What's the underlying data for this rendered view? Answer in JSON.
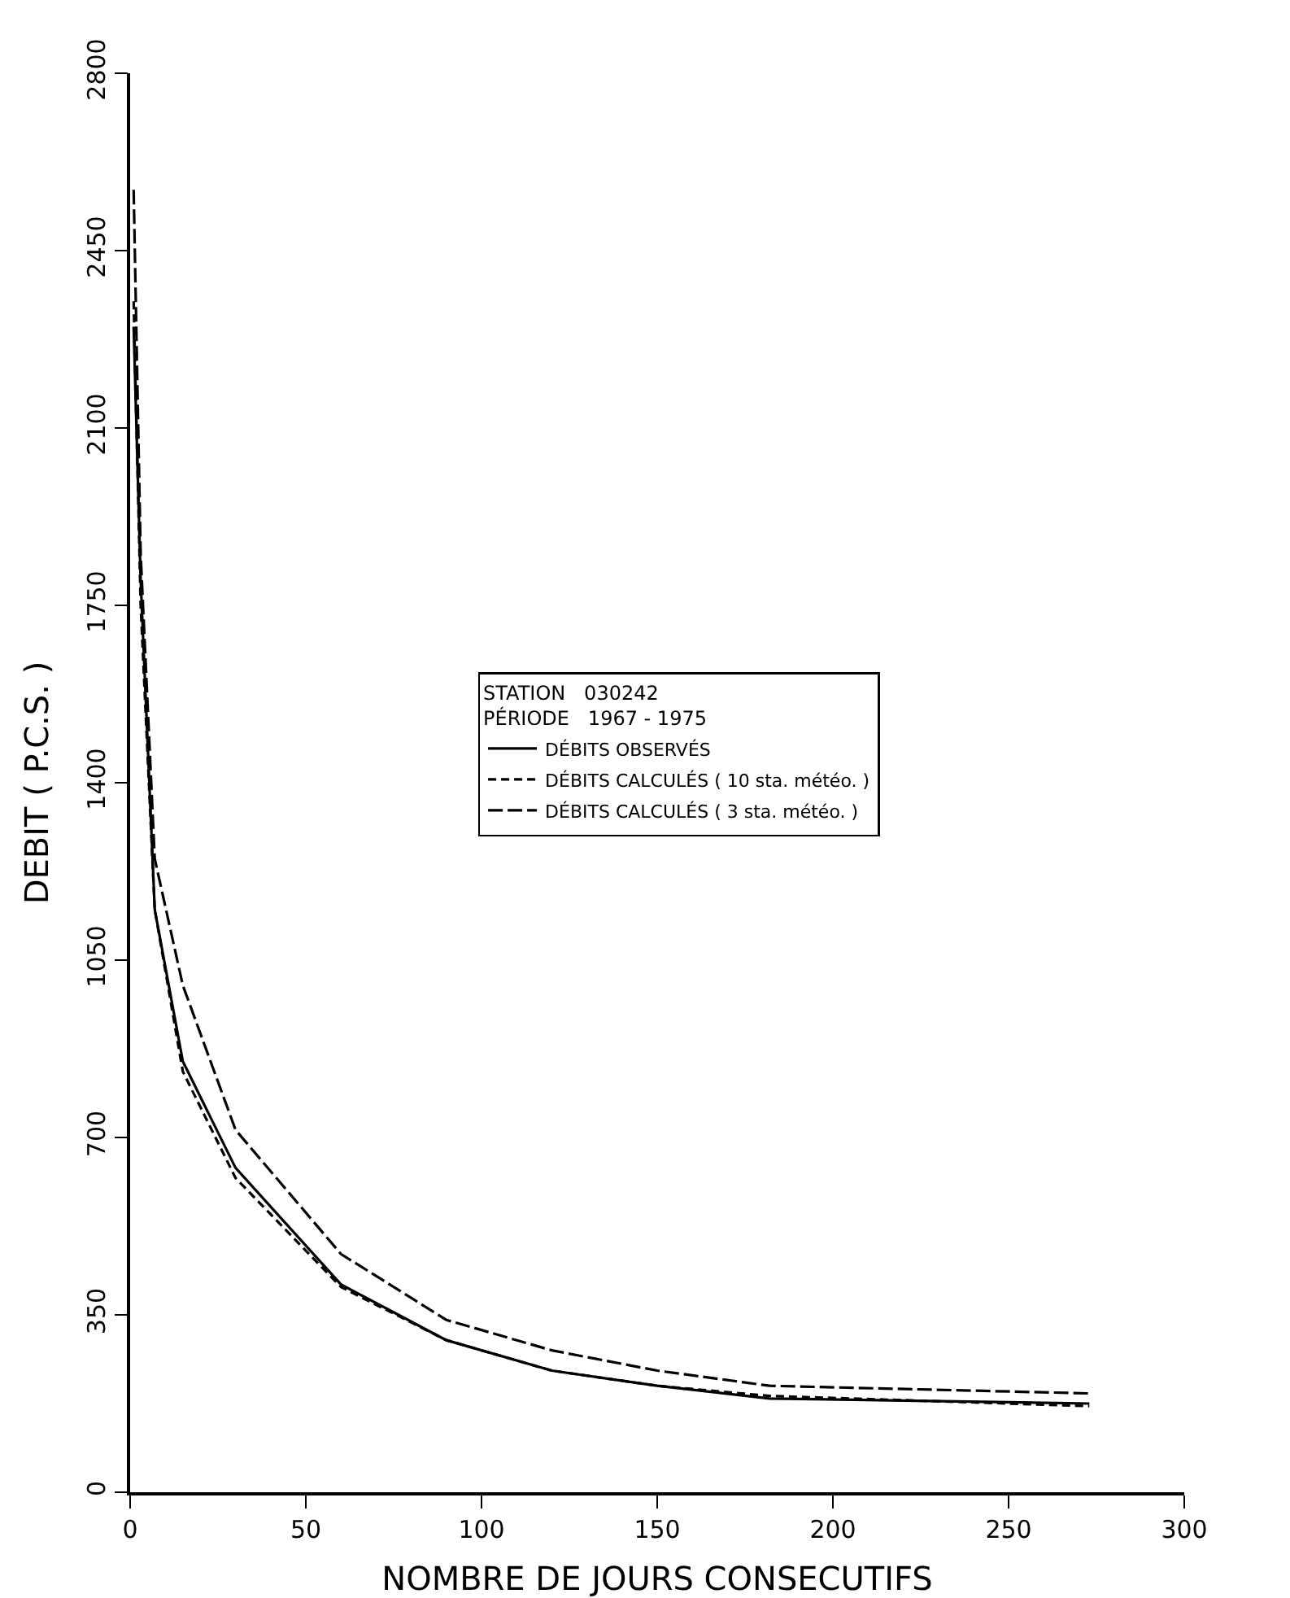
{
  "chart_data": {
    "type": "line",
    "xlabel": "NOMBRE DE JOURS CONSECUTIFS",
    "ylabel": "DEBIT ( P.C.S. )",
    "legend_title": "STATION   030242\nPÉRIODE   1967 - 1975",
    "x": [
      1,
      3,
      7,
      15,
      30,
      60,
      90,
      120,
      150,
      182,
      273
    ],
    "series": [
      {
        "name": "DÉBITS OBSERVÉS",
        "color": "#000000",
        "line_style": "solid",
        "values": [
          2300,
          1800,
          1150,
          850,
          640,
          410,
          300,
          240,
          210,
          185,
          175
        ]
      },
      {
        "name": "DÉBITS CALCULÉS ( 10 sta. météo. )",
        "color": "#000000",
        "line_style": "dotted",
        "values": [
          2350,
          1750,
          1150,
          830,
          620,
          405,
          300,
          240,
          210,
          190,
          170
        ]
      },
      {
        "name": "DÉBITS CALCULÉS ( 3 sta. météo. )",
        "color": "#000000",
        "line_style": "dashed",
        "values": [
          2570,
          1850,
          1250,
          1000,
          715,
          470,
          340,
          280,
          240,
          210,
          195
        ]
      }
    ],
    "xlim": [
      0,
      300
    ],
    "xticks": [
      0,
      50,
      100,
      150,
      200,
      250,
      300
    ],
    "ylim": [
      0,
      2800
    ],
    "yticks": [
      0,
      350,
      700,
      1050,
      1400,
      1750,
      2100,
      2450,
      2800
    ],
    "grid": false,
    "legend": "center",
    "marker": "none"
  }
}
